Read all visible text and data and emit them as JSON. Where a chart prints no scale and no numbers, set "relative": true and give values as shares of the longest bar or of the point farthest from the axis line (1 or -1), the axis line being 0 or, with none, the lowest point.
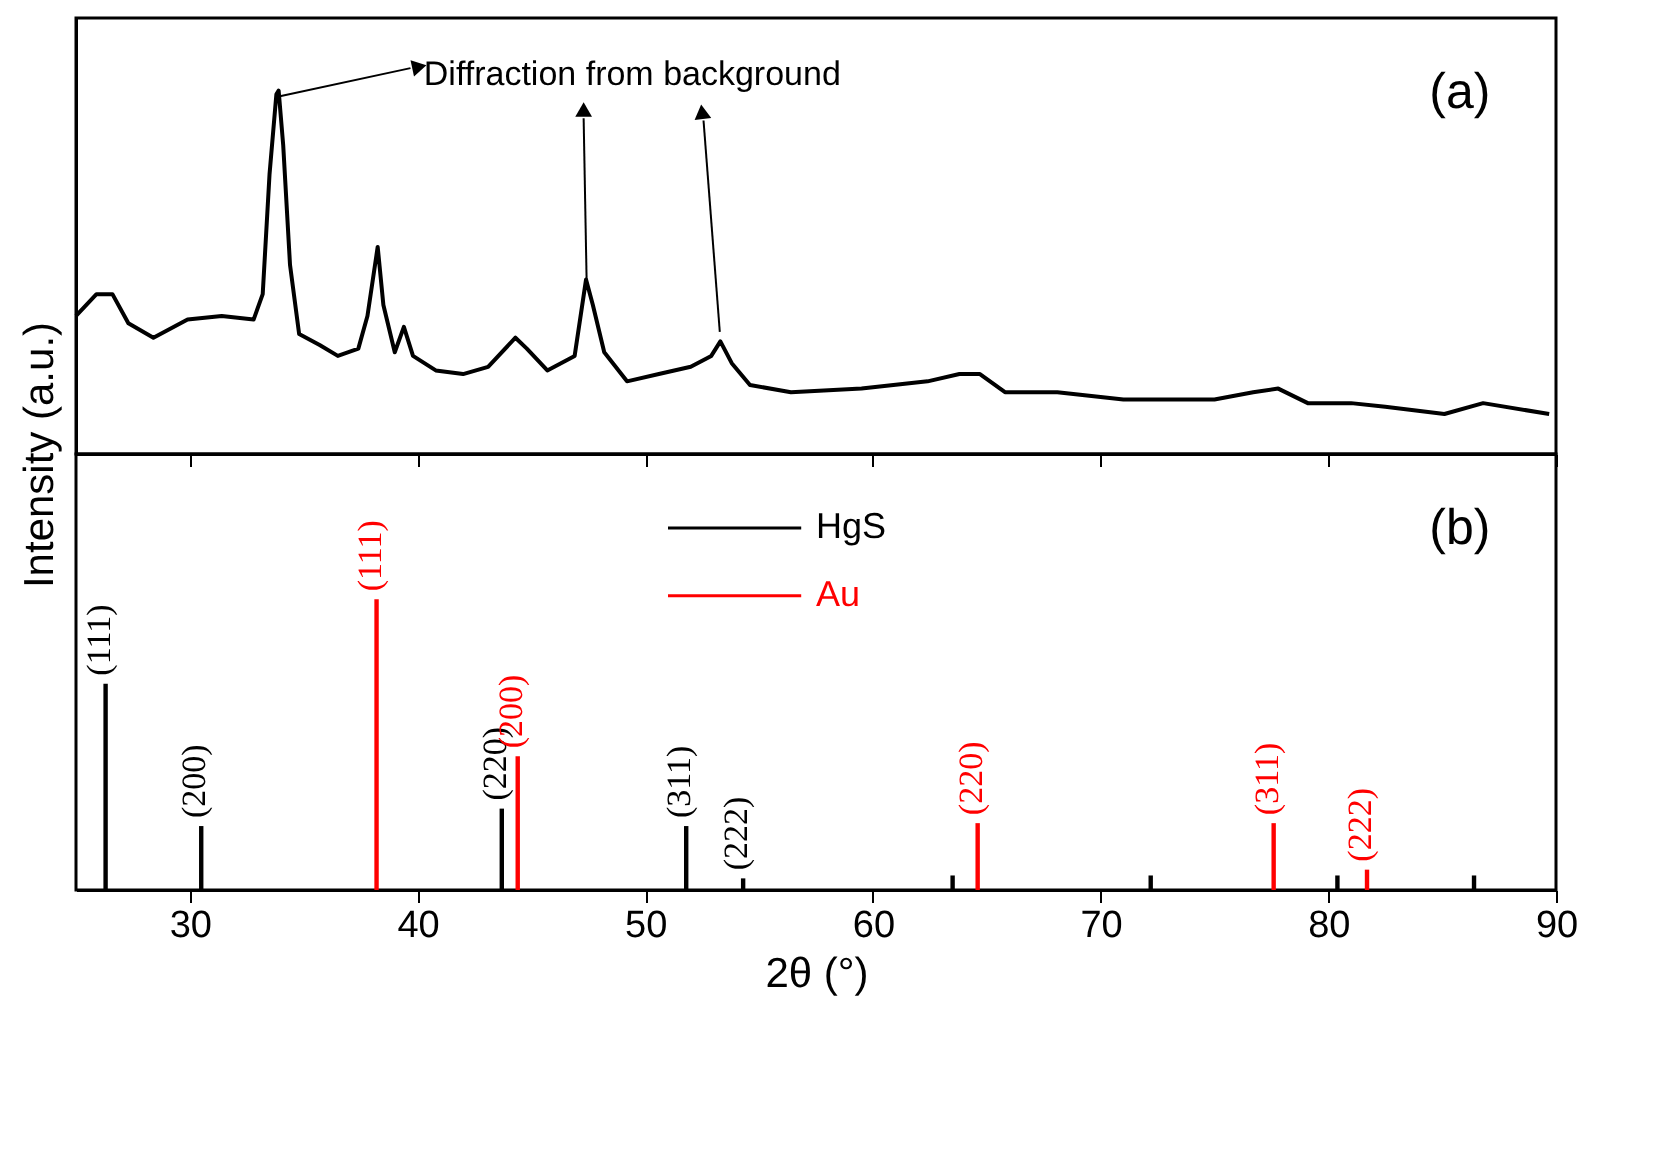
{
  "chart_data": [
    {
      "type": "line",
      "relative": true,
      "ylabel": "Intensity (a.u.)",
      "xlim": [
        25,
        90
      ],
      "xticks": [
        30,
        40,
        50,
        60,
        70,
        80,
        90
      ],
      "tick_labels": false,
      "grid": false,
      "annotations": [
        "Diffraction from background",
        "(a)"
      ],
      "series": [
        {
          "color": "#000000",
          "x": [
            25.0,
            25.9,
            26.6,
            27.3,
            28.4,
            29.9,
            31.4,
            32.8,
            33.2,
            33.5,
            33.8,
            33.9,
            34.1,
            34.4,
            34.8,
            35.7,
            36.5,
            37.4,
            37.8,
            38.25,
            38.5,
            39.0,
            39.4,
            39.8,
            40.8,
            42.0,
            43.1,
            44.3,
            44.8,
            45.7,
            46.9,
            47.4,
            47.7,
            48.2,
            49.2,
            50.6,
            52.0,
            52.9,
            53.3,
            53.8,
            54.6,
            56.4,
            59.5,
            62.4,
            63.8,
            64.7,
            65.8,
            68.1,
            71.0,
            75.0,
            76.7,
            77.8,
            79.1,
            81.0,
            82.5,
            85.1,
            86.8,
            89.7
          ],
          "values": [
            0.38,
            0.44,
            0.44,
            0.36,
            0.32,
            0.37,
            0.38,
            0.37,
            0.44,
            0.77,
            0.99,
            1.0,
            0.85,
            0.52,
            0.33,
            0.3,
            0.27,
            0.29,
            0.38,
            0.57,
            0.41,
            0.28,
            0.35,
            0.27,
            0.23,
            0.22,
            0.24,
            0.32,
            0.29,
            0.23,
            0.27,
            0.48,
            0.41,
            0.28,
            0.2,
            0.22,
            0.24,
            0.27,
            0.31,
            0.25,
            0.19,
            0.17,
            0.18,
            0.2,
            0.22,
            0.22,
            0.17,
            0.17,
            0.15,
            0.15,
            0.17,
            0.18,
            0.14,
            0.14,
            0.13,
            0.11,
            0.14,
            0.11
          ]
        }
      ]
    },
    {
      "type": "bar",
      "relative": true,
      "xlabel": "2θ (°)",
      "xlim": [
        25,
        90
      ],
      "xticks": [
        30,
        40,
        50,
        60,
        70,
        80,
        90
      ],
      "tick_labels": "x",
      "grid": false,
      "legend": "top",
      "annotations": [
        "(b)",
        {
          "text": "(111)",
          "x": 26.3,
          "y": 0.71
        },
        {
          "text": "(200)",
          "x": 30.5,
          "y": 0.22
        },
        {
          "text": "(220)",
          "x": 43.7,
          "y": 0.28
        },
        {
          "text": "(311)",
          "x": 51.8,
          "y": 0.22
        },
        {
          "text": "(222)",
          "x": 54.3,
          "y": 0.04
        },
        {
          "text": "(111)",
          "x": 38.2,
          "y": 1.0
        },
        {
          "text": "(200)",
          "x": 44.4,
          "y": 0.46
        },
        {
          "text": "(220)",
          "x": 64.6,
          "y": 0.23
        },
        {
          "text": "(311)",
          "x": 77.6,
          "y": 0.23
        },
        {
          "text": "(222)",
          "x": 81.7,
          "y": 0.07
        }
      ],
      "series": [
        {
          "name": "HgS",
          "color": "#000000",
          "x": [
            26.3,
            30.5,
            43.7,
            51.8,
            54.3,
            63.5,
            72.2,
            80.4,
            86.4
          ],
          "values": [
            0.71,
            0.22,
            0.28,
            0.22,
            0.04,
            0.05,
            0.05,
            0.05,
            0.05
          ]
        },
        {
          "name": "Au",
          "color": "#ff0000",
          "x": [
            38.2,
            44.4,
            64.6,
            77.6,
            81.7
          ],
          "values": [
            1.0,
            0.46,
            0.23,
            0.23,
            0.07
          ]
        }
      ]
    }
  ]
}
